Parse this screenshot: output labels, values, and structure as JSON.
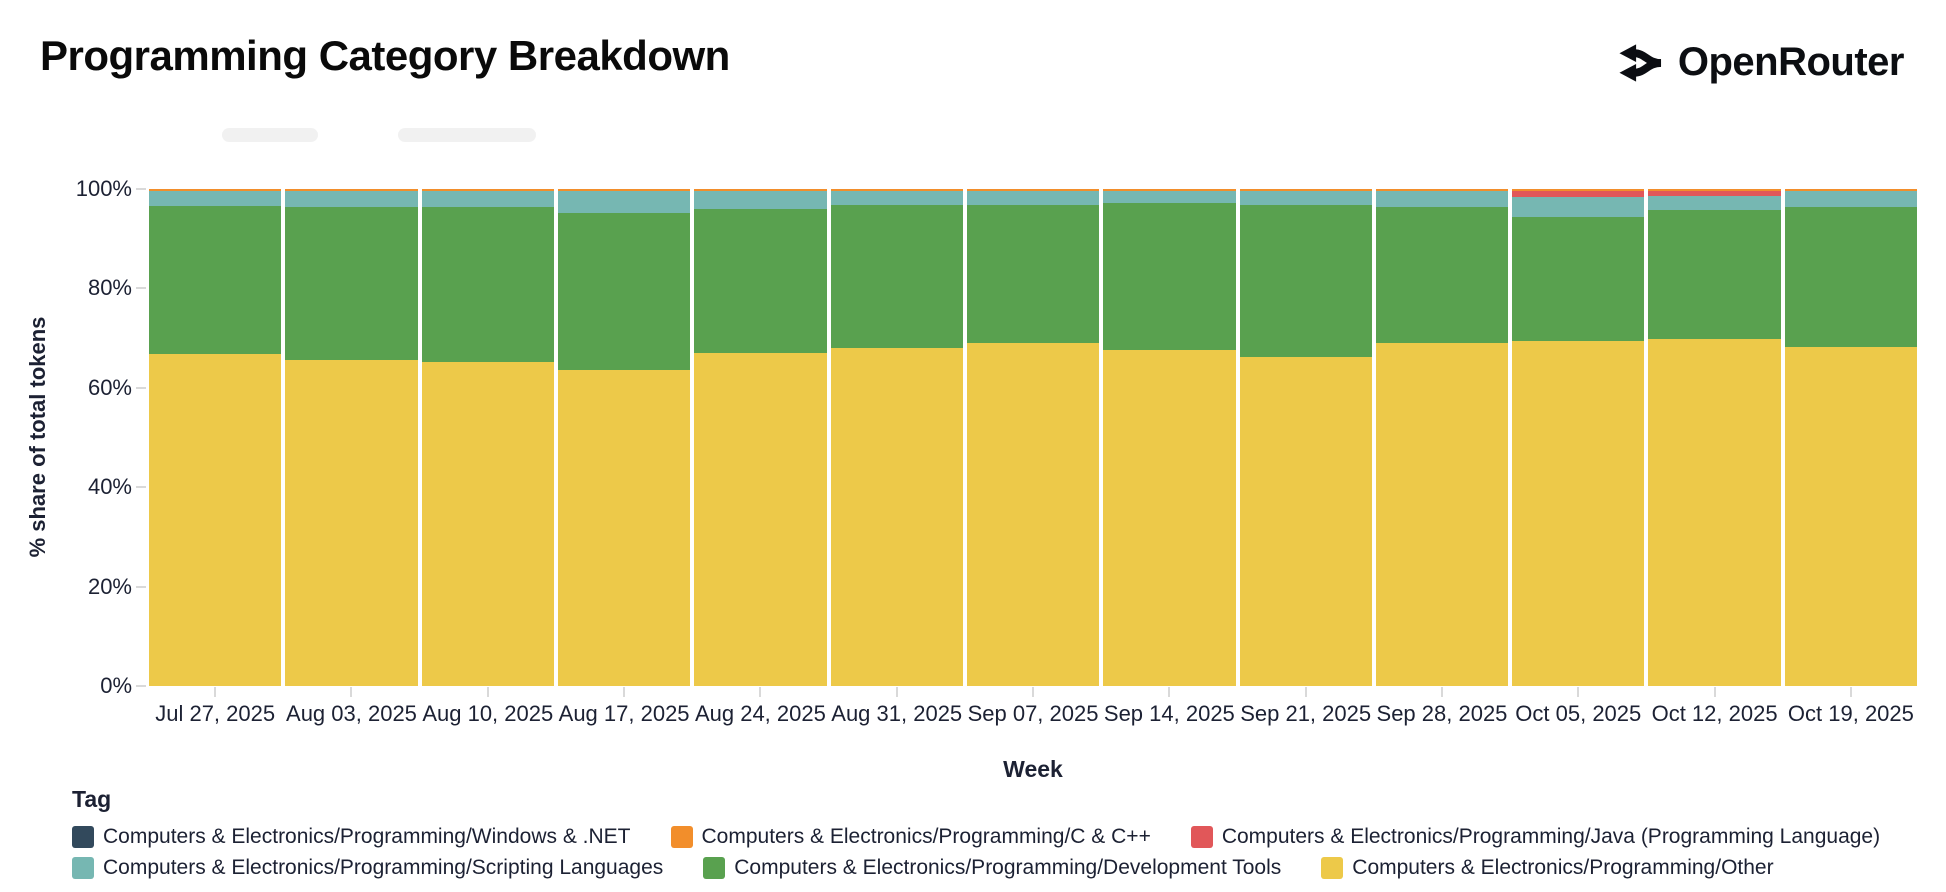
{
  "header": {
    "title": "Programming Category Breakdown",
    "brand": "OpenRouter"
  },
  "chart_data": {
    "type": "bar",
    "stacked": true,
    "normalized_percent": true,
    "title": "Programming Category Breakdown",
    "xlabel": "Week",
    "ylabel": "% share of total tokens",
    "ylim": [
      0,
      100
    ],
    "yticks": [
      {
        "value": 0,
        "label": "0%"
      },
      {
        "value": 20,
        "label": "20%"
      },
      {
        "value": 40,
        "label": "40%"
      },
      {
        "value": 60,
        "label": "60%"
      },
      {
        "value": 80,
        "label": "80%"
      },
      {
        "value": 100,
        "label": "100%"
      }
    ],
    "grid": false,
    "legend_title": "Tag",
    "legend_position": "bottom",
    "legend_columns": 3,
    "categories": [
      "Jul 27, 2025",
      "Aug 03, 2025",
      "Aug 10, 2025",
      "Aug 17, 2025",
      "Aug 24, 2025",
      "Aug 31, 2025",
      "Sep 07, 2025",
      "Sep 14, 2025",
      "Sep 21, 2025",
      "Sep 28, 2025",
      "Oct 05, 2025",
      "Oct 12, 2025",
      "Oct 19, 2025"
    ],
    "stack_order_note": "series listed top-to-bottom of each bar; 'Other' is the bottom segment",
    "series": [
      {
        "name": "Computers & Electronics/Programming/Windows & .NET",
        "color": "#32495c",
        "pattern": "dots",
        "values": [
          0.1,
          0.1,
          0.1,
          0.1,
          0.1,
          0.1,
          0.1,
          0.1,
          0.1,
          0.1,
          0.1,
          0.1,
          0.1
        ]
      },
      {
        "name": "Computers & Electronics/Programming/C & C++",
        "color": "#f28e2b",
        "values": [
          0.3,
          0.3,
          0.3,
          0.3,
          0.3,
          0.3,
          0.3,
          0.3,
          0.3,
          0.3,
          0.3,
          0.3,
          0.3
        ]
      },
      {
        "name": "Computers & Electronics/Programming/Java (Programming Language)",
        "color": "#e15759",
        "values": [
          0,
          0,
          0,
          0,
          0,
          0,
          0,
          0,
          0,
          0,
          1.2,
          1.1,
          0
        ]
      },
      {
        "name": "Computers & Electronics/Programming/Scripting Languages",
        "color": "#76b7b2",
        "values": [
          3.1,
          3.3,
          3.3,
          4.5,
          3.6,
          2.9,
          2.9,
          2.5,
          2.9,
          3.3,
          4.0,
          2.7,
          3.2
        ]
      },
      {
        "name": "Computers & Electronics/Programming/Development Tools",
        "color": "#59a14f",
        "values": [
          29.7,
          30.7,
          31.2,
          31.5,
          29.0,
          28.7,
          27.7,
          29.4,
          30.6,
          27.3,
          24.9,
          26.0,
          28.1
        ]
      },
      {
        "name": "Computers & Electronics/Programming/Other",
        "color": "#edc949",
        "values": [
          66.8,
          65.6,
          65.1,
          63.6,
          67.0,
          68.0,
          69.0,
          67.7,
          66.1,
          69.0,
          69.5,
          69.8,
          68.3
        ]
      }
    ]
  }
}
